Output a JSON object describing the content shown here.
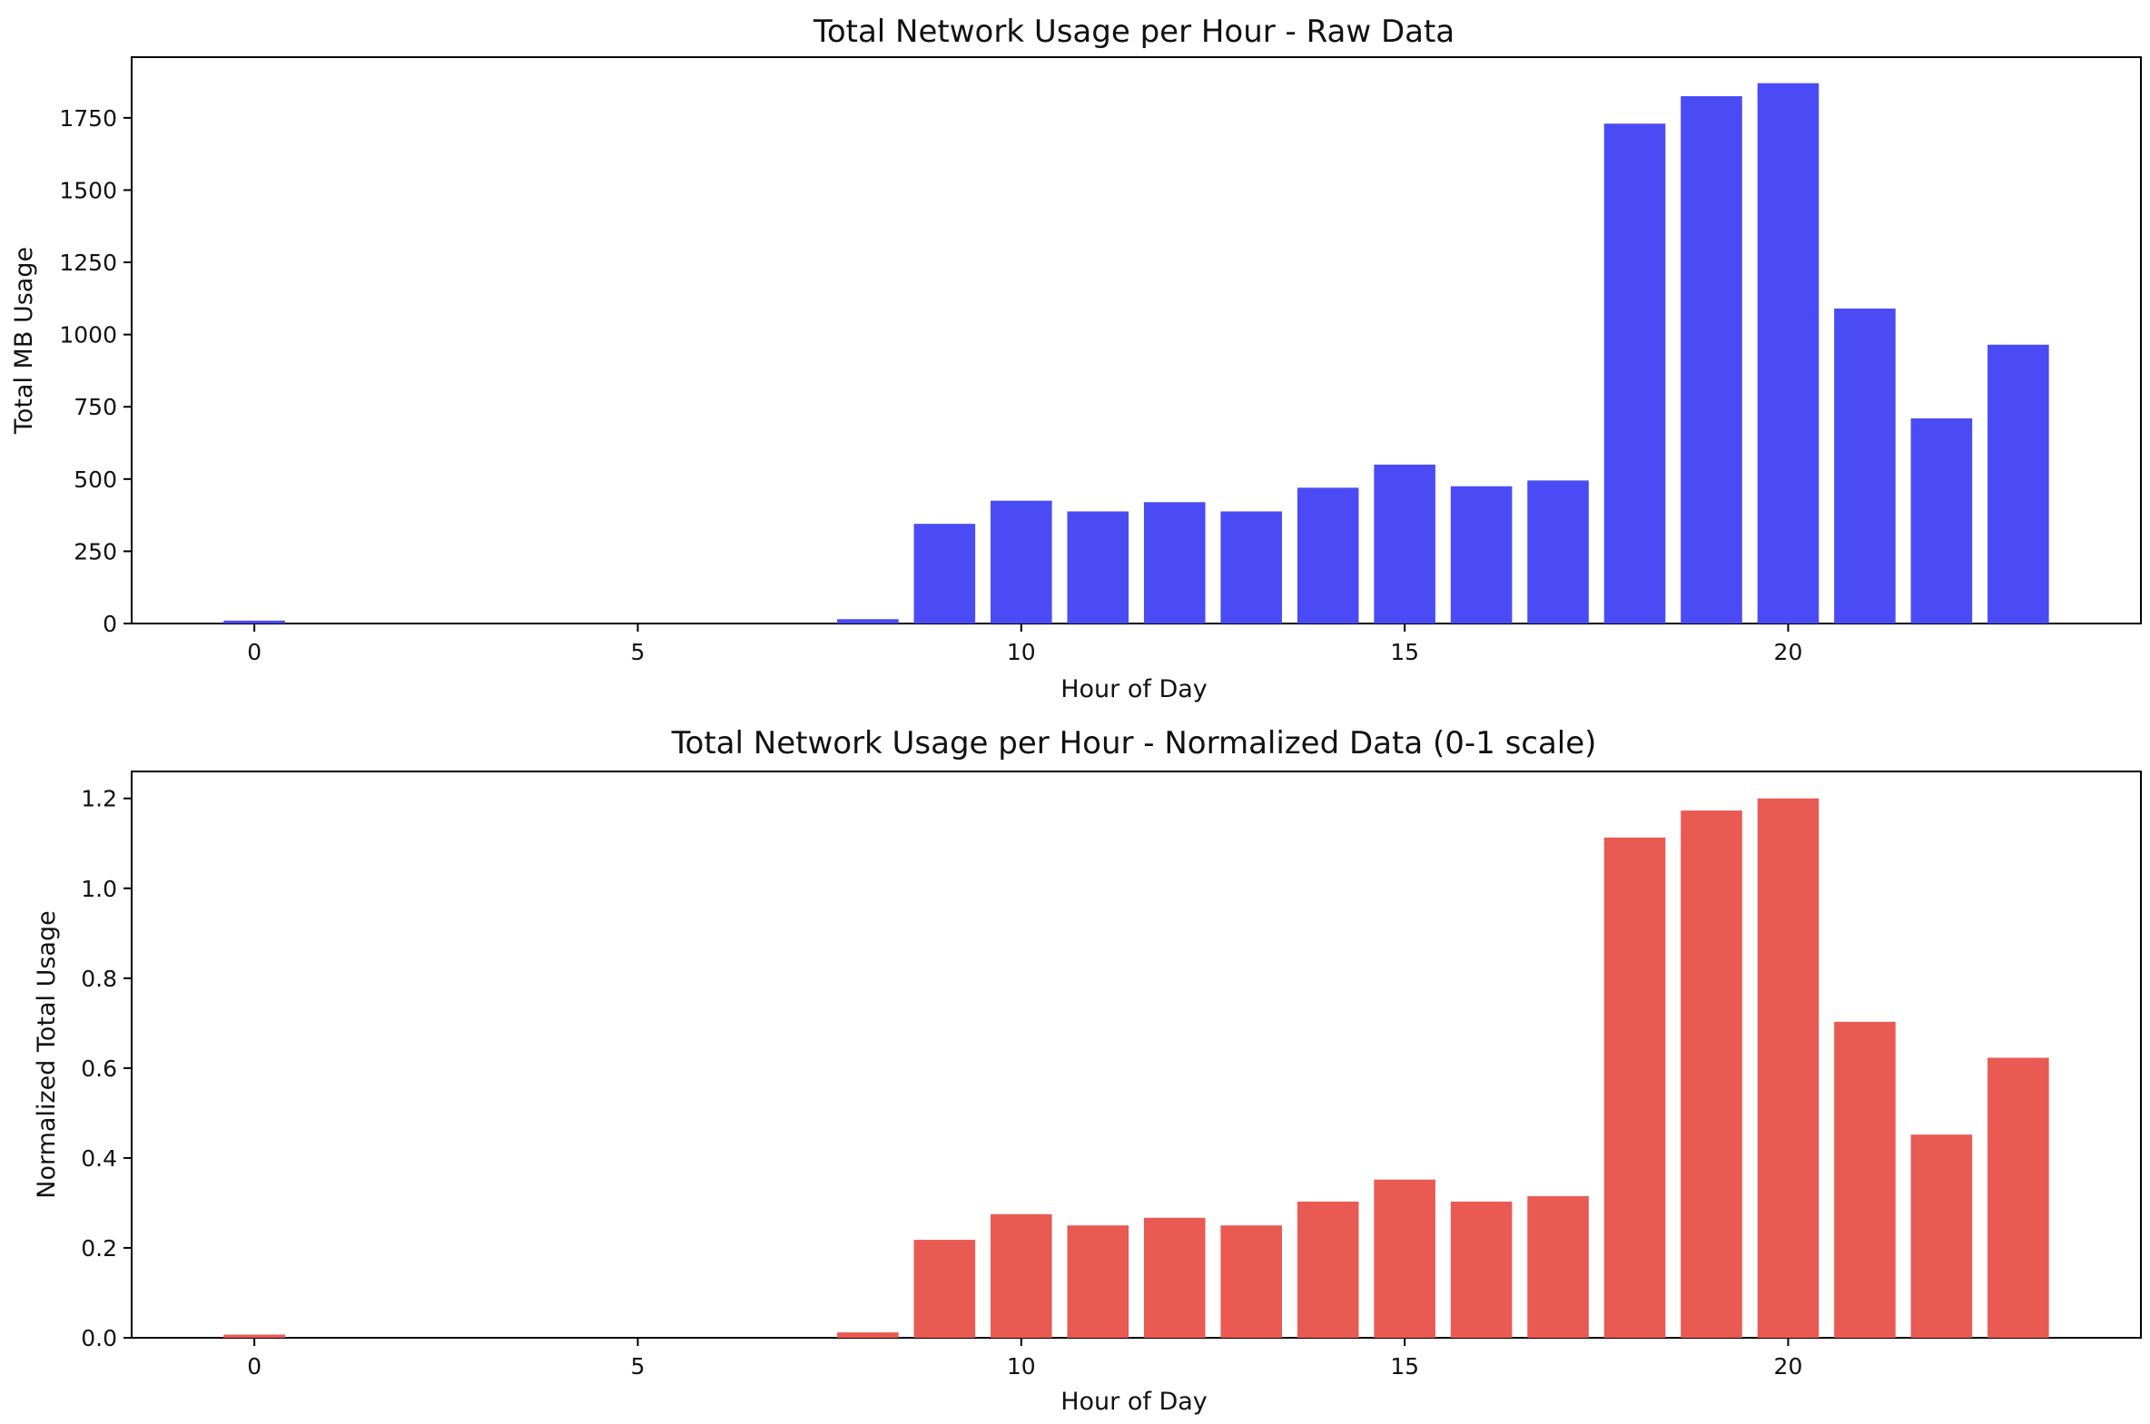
{
  "chart_data": [
    {
      "type": "bar",
      "title": "Total Network Usage per Hour - Raw Data",
      "xlabel": "Hour of Day",
      "ylabel": "Total MB Usage",
      "x": [
        0,
        8,
        9,
        10,
        11,
        12,
        13,
        14,
        15,
        16,
        17,
        18,
        19,
        20,
        21,
        22,
        23
      ],
      "values": [
        10,
        15,
        345,
        425,
        388,
        420,
        388,
        470,
        550,
        475,
        495,
        1730,
        1825,
        1870,
        1090,
        710,
        965
      ],
      "xlim": [
        -1.6,
        24.6
      ],
      "ylim": [
        0,
        1960
      ],
      "xticks": [
        0,
        5,
        10,
        15,
        20
      ],
      "yticks": [
        0,
        250,
        500,
        750,
        1000,
        1250,
        1500,
        1750
      ],
      "ytick_labels": [
        "0",
        "250",
        "500",
        "750",
        "1000",
        "1250",
        "1500",
        "1750"
      ],
      "color": "#4b4bf5",
      "grid": false
    },
    {
      "type": "bar",
      "title": "Total Network Usage per Hour - Normalized Data (0-1 scale)",
      "xlabel": "Hour of Day",
      "ylabel": "Normalized Total Usage",
      "x": [
        0,
        8,
        9,
        10,
        11,
        12,
        13,
        14,
        15,
        16,
        17,
        18,
        19,
        20,
        21,
        22,
        23
      ],
      "values": [
        0.007,
        0.012,
        0.218,
        0.275,
        0.25,
        0.267,
        0.25,
        0.303,
        0.352,
        0.303,
        0.315,
        1.113,
        1.173,
        1.2,
        0.703,
        0.452,
        0.623
      ],
      "xlim": [
        -1.6,
        24.6
      ],
      "ylim": [
        0,
        1.26
      ],
      "xticks": [
        0,
        5,
        10,
        15,
        20
      ],
      "yticks": [
        0.0,
        0.2,
        0.4,
        0.6,
        0.8,
        1.0,
        1.2
      ],
      "ytick_labels": [
        "0.0",
        "0.2",
        "0.4",
        "0.6",
        "0.8",
        "1.0",
        "1.2"
      ],
      "color": "#e95a52",
      "grid": false
    }
  ]
}
